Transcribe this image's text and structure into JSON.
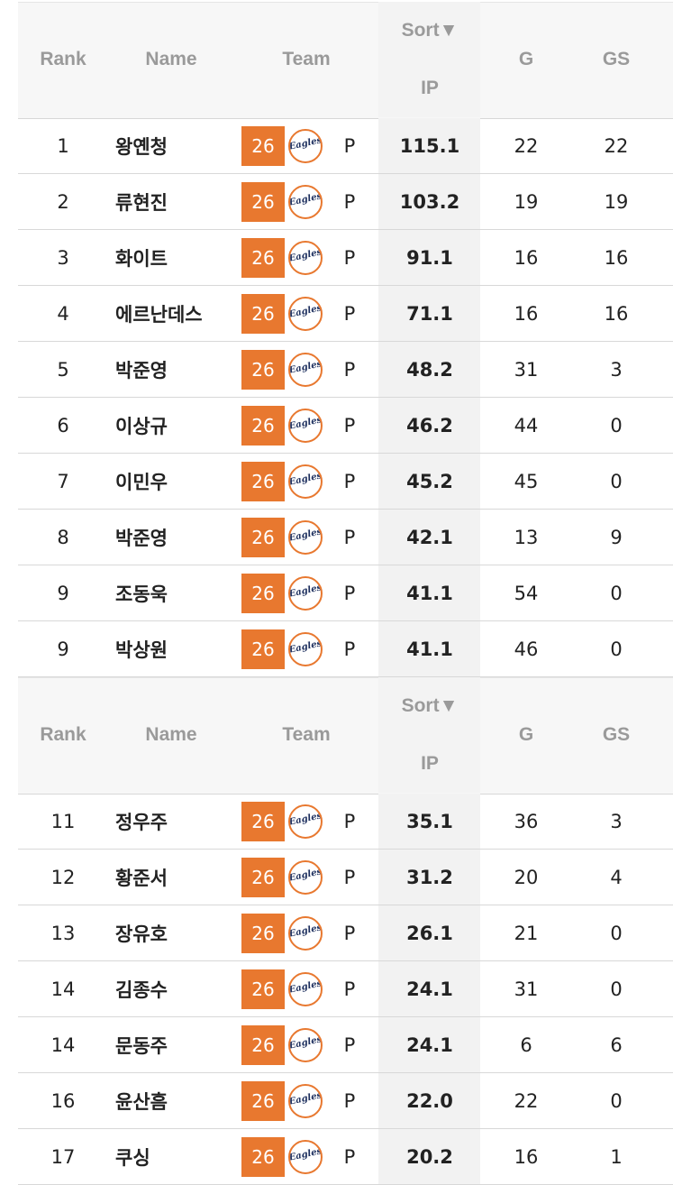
{
  "tables": [
    {
      "header": {
        "rank": "Rank",
        "name": "Name",
        "team": "Team",
        "sort": "Sort▼",
        "ip": "IP",
        "g": "G",
        "gs": "GS"
      },
      "rows": [
        {
          "rank": 1,
          "name": "왕옌청",
          "team_no": "26",
          "logo": "Eagles",
          "pos": "P",
          "ip": "115.1",
          "g": 22,
          "gs": 22
        },
        {
          "rank": 2,
          "name": "류현진",
          "team_no": "26",
          "logo": "Eagles",
          "pos": "P",
          "ip": "103.2",
          "g": 19,
          "gs": 19
        },
        {
          "rank": 3,
          "name": "화이트",
          "team_no": "26",
          "logo": "Eagles",
          "pos": "P",
          "ip": "91.1",
          "g": 16,
          "gs": 16
        },
        {
          "rank": 4,
          "name": "에르난데스",
          "team_no": "26",
          "logo": "Eagles",
          "pos": "P",
          "ip": "71.1",
          "g": 16,
          "gs": 16
        },
        {
          "rank": 5,
          "name": "박준영",
          "team_no": "26",
          "logo": "Eagles",
          "pos": "P",
          "ip": "48.2",
          "g": 31,
          "gs": 3
        },
        {
          "rank": 6,
          "name": "이상규",
          "team_no": "26",
          "logo": "Eagles",
          "pos": "P",
          "ip": "46.2",
          "g": 44,
          "gs": 0
        },
        {
          "rank": 7,
          "name": "이민우",
          "team_no": "26",
          "logo": "Eagles",
          "pos": "P",
          "ip": "45.2",
          "g": 45,
          "gs": 0
        },
        {
          "rank": 8,
          "name": "박준영",
          "team_no": "26",
          "logo": "Eagles",
          "pos": "P",
          "ip": "42.1",
          "g": 13,
          "gs": 9
        },
        {
          "rank": 9,
          "name": "조동욱",
          "team_no": "26",
          "logo": "Eagles",
          "pos": "P",
          "ip": "41.1",
          "g": 54,
          "gs": 0
        },
        {
          "rank": 9,
          "name": "박상원",
          "team_no": "26",
          "logo": "Eagles",
          "pos": "P",
          "ip": "41.1",
          "g": 46,
          "gs": 0
        }
      ]
    },
    {
      "header": {
        "rank": "Rank",
        "name": "Name",
        "team": "Team",
        "sort": "Sort▼",
        "ip": "IP",
        "g": "G",
        "gs": "GS"
      },
      "rows": [
        {
          "rank": 11,
          "name": "정우주",
          "team_no": "26",
          "logo": "Eagles",
          "pos": "P",
          "ip": "35.1",
          "g": 36,
          "gs": 3
        },
        {
          "rank": 12,
          "name": "황준서",
          "team_no": "26",
          "logo": "Eagles",
          "pos": "P",
          "ip": "31.2",
          "g": 20,
          "gs": 4
        },
        {
          "rank": 13,
          "name": "장유호",
          "team_no": "26",
          "logo": "Eagles",
          "pos": "P",
          "ip": "26.1",
          "g": 21,
          "gs": 0
        },
        {
          "rank": 14,
          "name": "김종수",
          "team_no": "26",
          "logo": "Eagles",
          "pos": "P",
          "ip": "24.1",
          "g": 31,
          "gs": 0
        },
        {
          "rank": 14,
          "name": "문동주",
          "team_no": "26",
          "logo": "Eagles",
          "pos": "P",
          "ip": "24.1",
          "g": 6,
          "gs": 6
        },
        {
          "rank": 16,
          "name": "윤산흠",
          "team_no": "26",
          "logo": "Eagles",
          "pos": "P",
          "ip": "22.0",
          "g": 22,
          "gs": 0
        },
        {
          "rank": 17,
          "name": "쿠싱",
          "team_no": "26",
          "logo": "Eagles",
          "pos": "P",
          "ip": "20.2",
          "g": 16,
          "gs": 1
        }
      ]
    }
  ]
}
